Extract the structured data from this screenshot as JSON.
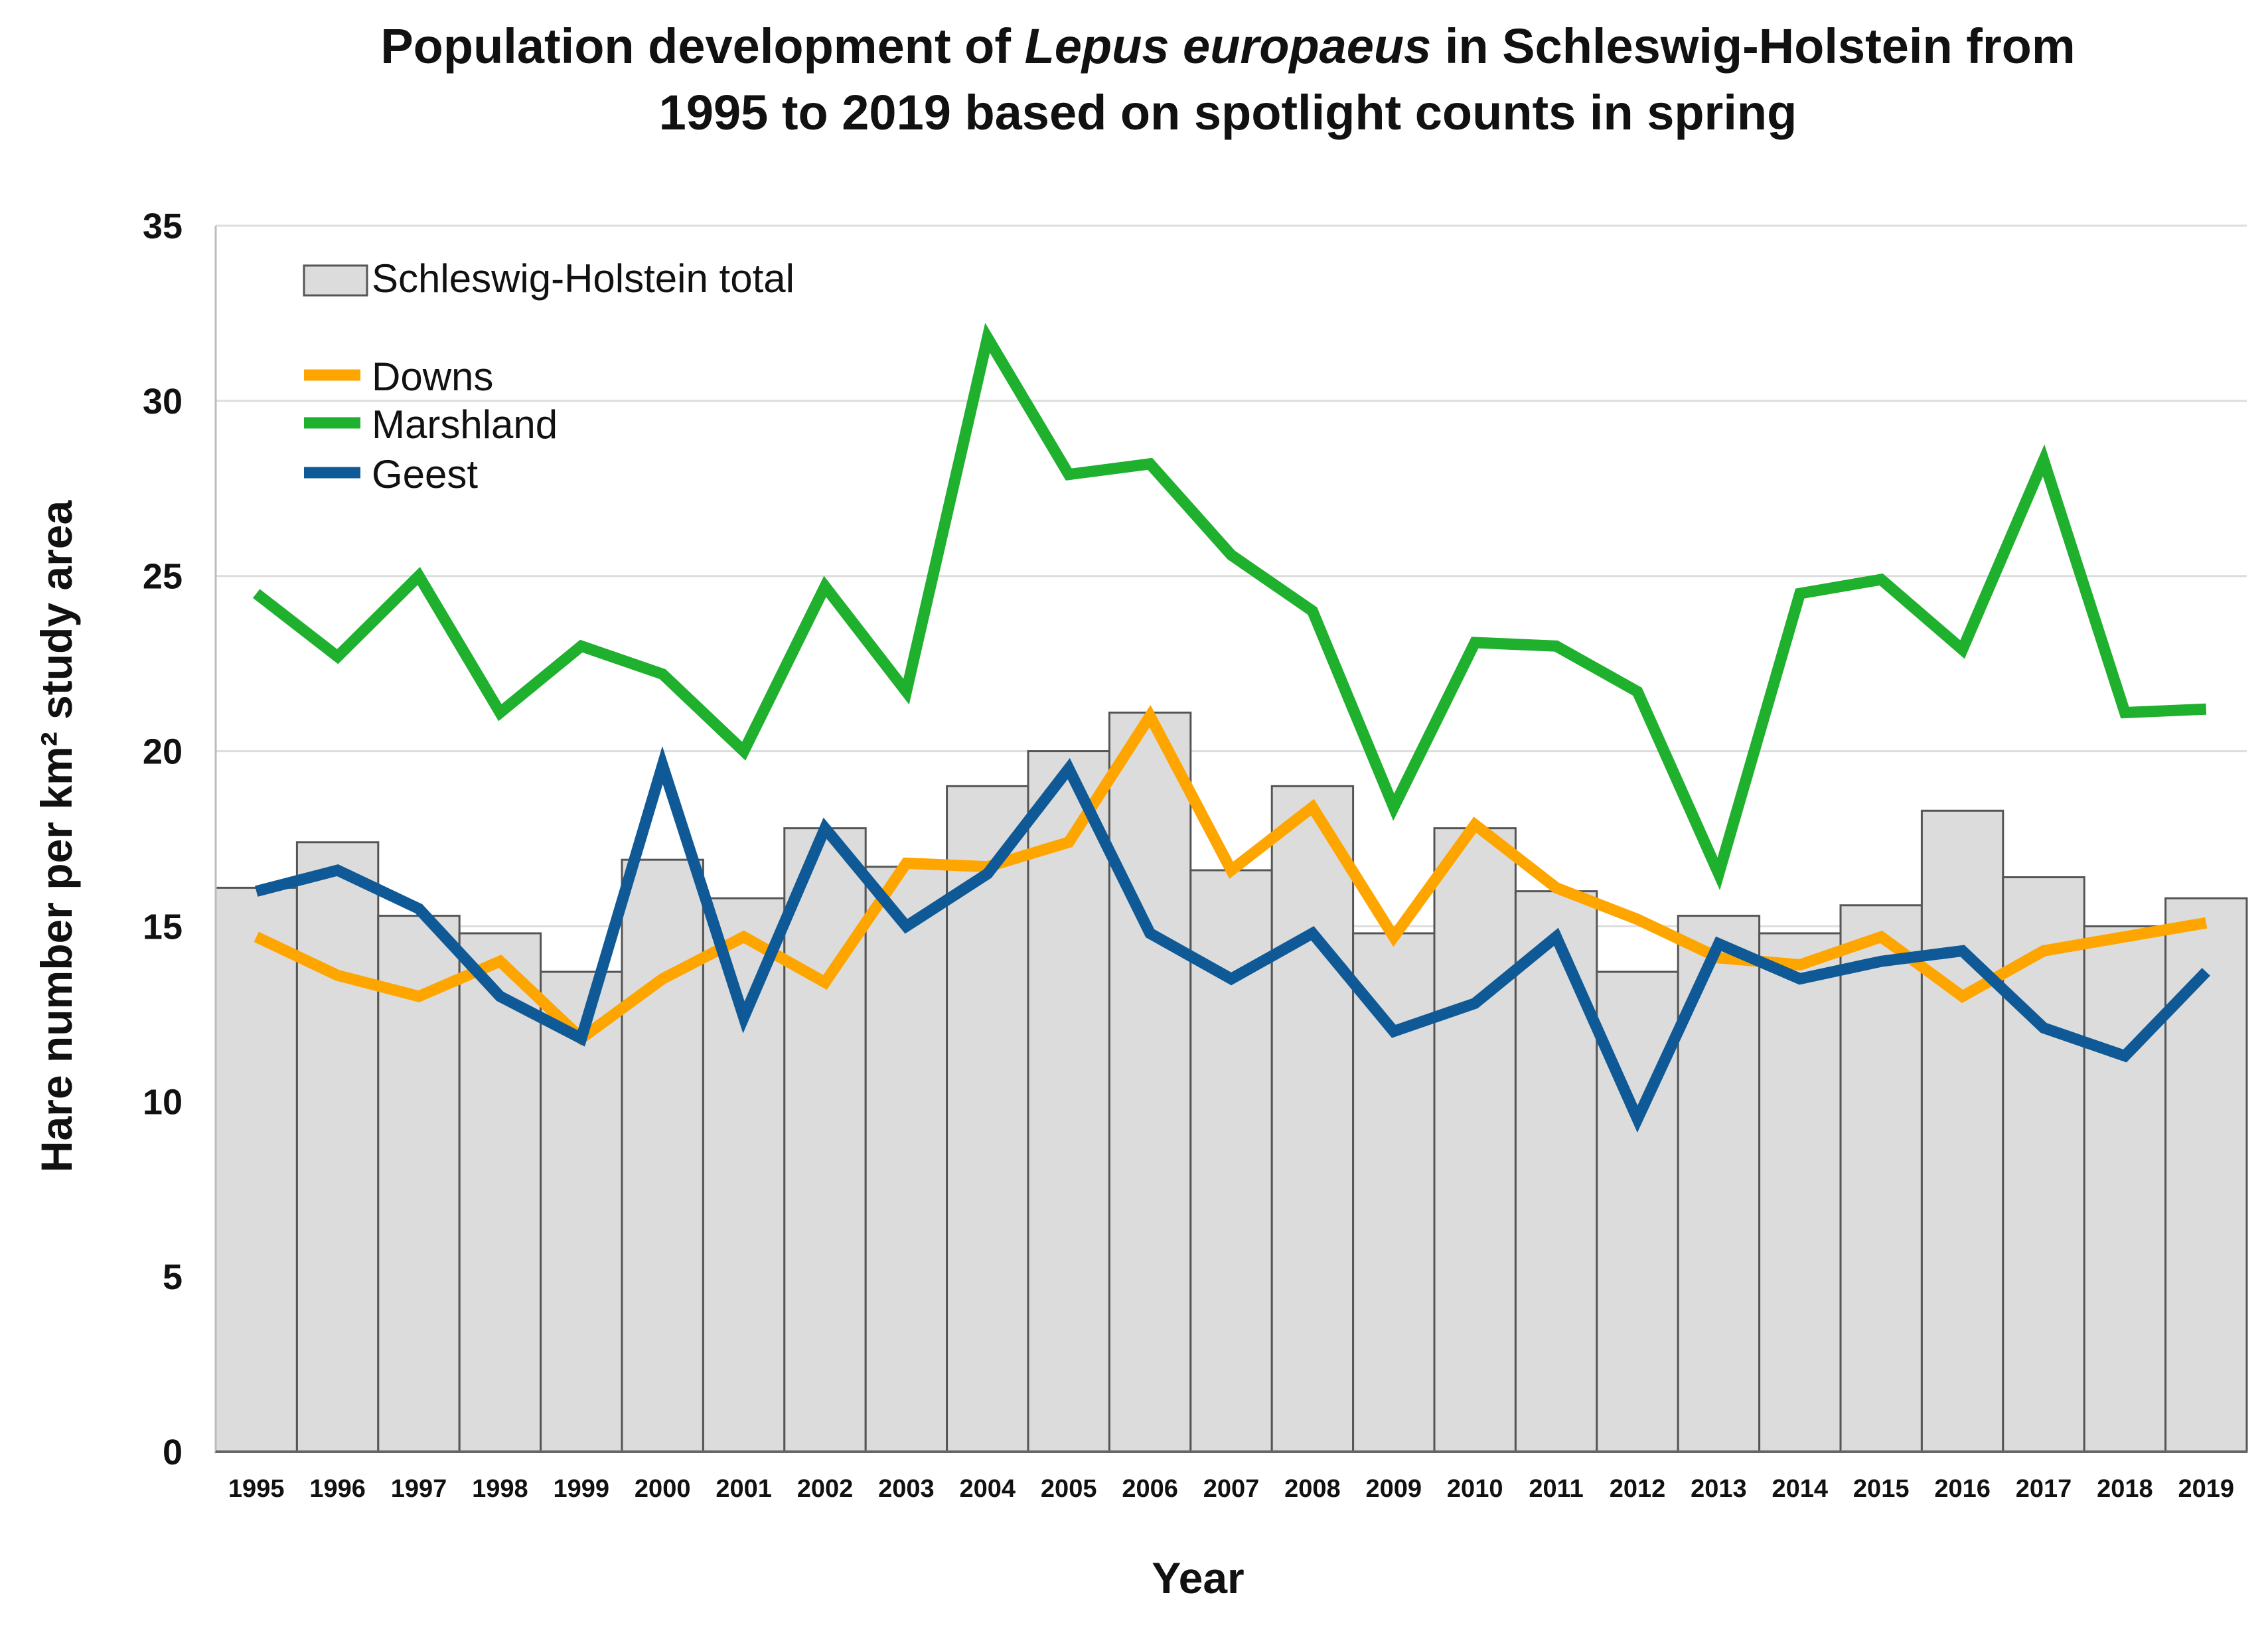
{
  "chart_data": {
    "type": "bar+line",
    "title_parts": [
      "Population development of ",
      "Lepus europaeus",
      " in Schleswig-Holstein from"
    ],
    "title_line2": "1995 to 2019 based on spotlight counts in spring",
    "xlabel": "Year",
    "ylabel": "Hare number per km² study area",
    "ylim": [
      0,
      35
    ],
    "yticks": [
      "0",
      "5",
      "10",
      "15",
      "20",
      "25",
      "30",
      "35"
    ],
    "grid": true,
    "categories": [
      "1995",
      "1996",
      "1997",
      "1998",
      "1999",
      "2000",
      "2001",
      "2002",
      "2003",
      "2004",
      "2005",
      "2006",
      "2007",
      "2008",
      "2009",
      "2010",
      "2011",
      "2012",
      "2013",
      "2014",
      "2015",
      "2016",
      "2017",
      "2018",
      "2019"
    ],
    "bar_series": {
      "name": "Schleswig-Holstein total",
      "color": "#dcdcdc",
      "edge_color": "#555555",
      "values": [
        16.1,
        17.4,
        15.3,
        14.8,
        13.7,
        16.9,
        15.8,
        17.8,
        16.7,
        19.0,
        20.0,
        21.1,
        16.6,
        19.0,
        14.8,
        17.8,
        16.0,
        13.7,
        15.3,
        14.8,
        15.6,
        18.3,
        16.4,
        15.0,
        15.8
      ]
    },
    "line_series": [
      {
        "name": "Downs",
        "color": "#ffa500",
        "values": [
          14.7,
          13.6,
          13.0,
          14.0,
          11.8,
          13.5,
          14.7,
          13.4,
          16.8,
          16.7,
          17.4,
          21.0,
          16.6,
          18.4,
          14.7,
          17.9,
          16.1,
          15.2,
          14.1,
          13.9,
          14.7,
          13.0,
          14.3,
          14.7,
          15.1
        ]
      },
      {
        "name": "Marshland",
        "color": "#1fb02e",
        "values": [
          24.5,
          22.7,
          25.0,
          21.1,
          23.0,
          22.2,
          20.0,
          24.7,
          21.7,
          31.8,
          27.9,
          28.2,
          25.6,
          24.0,
          18.4,
          23.1,
          23.0,
          21.7,
          16.5,
          24.5,
          24.9,
          22.9,
          28.3,
          21.1,
          21.2
        ]
      },
      {
        "name": "Geest",
        "color": "#0f5a96",
        "values": [
          16.0,
          16.6,
          15.5,
          13.0,
          11.8,
          19.6,
          12.4,
          17.8,
          15.0,
          16.5,
          19.5,
          14.8,
          13.5,
          14.8,
          12.0,
          12.8,
          14.7,
          9.5,
          14.5,
          13.5,
          14.0,
          14.3,
          12.1,
          11.3,
          13.7
        ]
      }
    ],
    "legend": {
      "placement": "top-left"
    }
  }
}
